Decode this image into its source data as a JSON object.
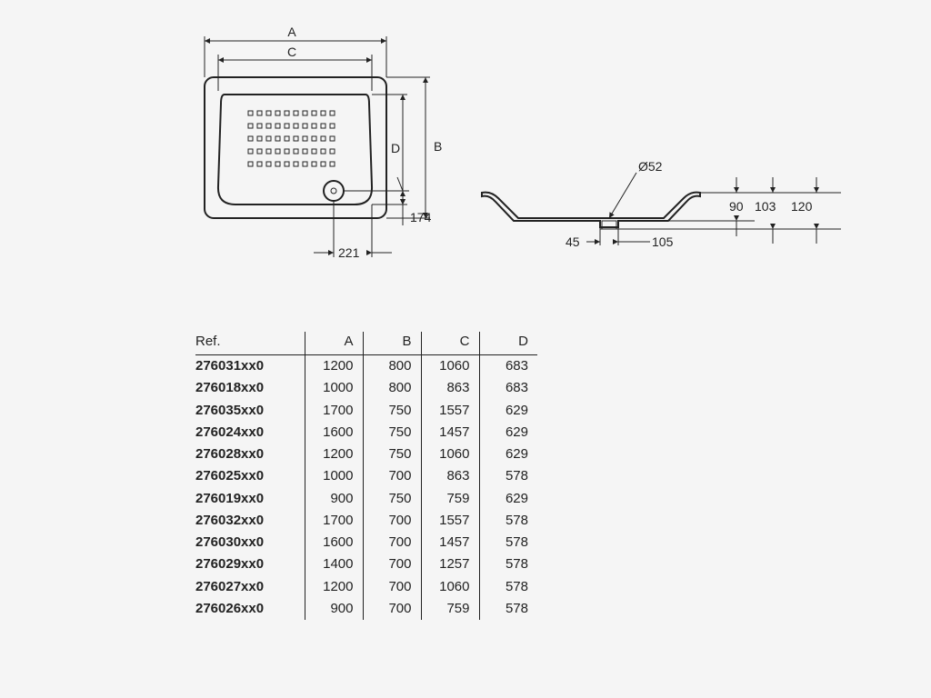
{
  "diagram": {
    "stroke_color": "#222222",
    "background_color": "#f5f5f5",
    "line_width_thin": 1,
    "line_width_thick": 2,
    "font_size_dim": 14,
    "top_view": {
      "labels": {
        "A": "A",
        "C": "C",
        "D": "D",
        "B": "B"
      },
      "dim_174": "174",
      "dim_221": "221"
    },
    "side_view": {
      "diameter_label": "Ø52",
      "dim_45": "45",
      "dim_105": "105",
      "dim_90": "90",
      "dim_103": "103",
      "dim_120": "120"
    }
  },
  "table": {
    "header": {
      "ref": "Ref.",
      "A": "A",
      "B": "B",
      "C": "C",
      "D": "D"
    },
    "rows": [
      {
        "ref": "276031xx0",
        "A": "1200",
        "B": "800",
        "C": "1060",
        "D": "683"
      },
      {
        "ref": "276018xx0",
        "A": "1000",
        "B": "800",
        "C": "863",
        "D": "683"
      },
      {
        "ref": "276035xx0",
        "A": "1700",
        "B": "750",
        "C": "1557",
        "D": "629"
      },
      {
        "ref": "276024xx0",
        "A": "1600",
        "B": "750",
        "C": "1457",
        "D": "629"
      },
      {
        "ref": "276028xx0",
        "A": "1200",
        "B": "750",
        "C": "1060",
        "D": "629"
      },
      {
        "ref": "276025xx0",
        "A": "1000",
        "B": "700",
        "C": "863",
        "D": "578"
      },
      {
        "ref": "276019xx0",
        "A": "900",
        "B": "750",
        "C": "759",
        "D": "629"
      },
      {
        "ref": "276032xx0",
        "A": "1700",
        "B": "700",
        "C": "1557",
        "D": "578"
      },
      {
        "ref": "276030xx0",
        "A": "1600",
        "B": "700",
        "C": "1457",
        "D": "578"
      },
      {
        "ref": "276029xx0",
        "A": "1400",
        "B": "700",
        "C": "1257",
        "D": "578"
      },
      {
        "ref": "276027xx0",
        "A": "1200",
        "B": "700",
        "C": "1060",
        "D": "578"
      },
      {
        "ref": "276026xx0",
        "A": "900",
        "B": "700",
        "C": "759",
        "D": "578"
      }
    ]
  }
}
